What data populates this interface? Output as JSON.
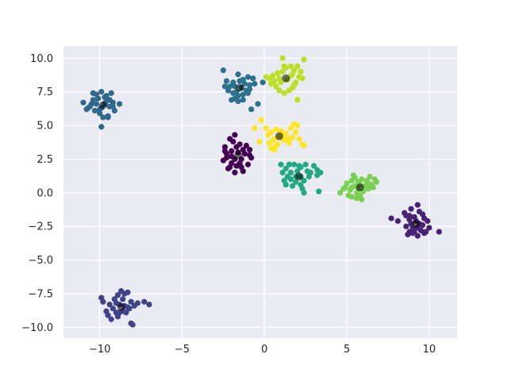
{
  "chart_data": {
    "type": "scatter",
    "title": "",
    "xlabel": "",
    "ylabel": "",
    "xlim": [
      -12.2,
      11.7
    ],
    "ylim": [
      -10.8,
      10.9
    ],
    "xticks": [
      -10,
      -5,
      0,
      5,
      10
    ],
    "xtick_labels": [
      "−10",
      "−5",
      "0",
      "5",
      "10"
    ],
    "yticks": [
      -10,
      -7.5,
      -5,
      -2.5,
      0,
      2.5,
      5,
      7.5,
      10
    ],
    "ytick_labels": [
      "−10.0",
      "−7.5",
      "−5.0",
      "−2.5",
      "0.0",
      "2.5",
      "5.0",
      "7.5",
      "10.0"
    ],
    "grid": true,
    "background": "#eaeaf2",
    "center_color": "#000000",
    "clusters": [
      {
        "color": "#440154",
        "center": [
          -1.6,
          2.8
        ],
        "points": [
          [
            -2.4,
            3.4
          ],
          [
            -2.1,
            4.0
          ],
          [
            -1.8,
            4.3
          ],
          [
            -1.5,
            3.6
          ],
          [
            -1.1,
            3.5
          ],
          [
            -0.9,
            3.2
          ],
          [
            -0.8,
            2.6
          ],
          [
            -1.0,
            2.1
          ],
          [
            -1.3,
            1.6
          ],
          [
            -1.8,
            1.5
          ],
          [
            -2.2,
            1.8
          ],
          [
            -2.5,
            2.4
          ],
          [
            -2.3,
            2.9
          ],
          [
            -2.0,
            3.1
          ],
          [
            -1.6,
            3.0
          ],
          [
            -1.4,
            2.5
          ],
          [
            -2.0,
            2.2
          ],
          [
            -1.2,
            2.9
          ],
          [
            -1.7,
            2.0
          ],
          [
            -2.3,
            2.6
          ],
          [
            -2.1,
            1.9
          ],
          [
            -1.9,
            3.8
          ],
          [
            -1.5,
            2.2
          ],
          [
            -0.9,
            2.8
          ],
          [
            -2.4,
            3.1
          ],
          [
            -1.7,
            3.4
          ],
          [
            -1.3,
            3.2
          ],
          [
            -1.8,
            2.5
          ],
          [
            -1.4,
            1.9
          ],
          [
            -2.0,
            2.7
          ]
        ]
      },
      {
        "color": "#482374",
        "center": [
          9.2,
          -2.3
        ],
        "points": [
          [
            8.5,
            -1.5
          ],
          [
            8.9,
            -1.2
          ],
          [
            9.3,
            -0.9
          ],
          [
            9.6,
            -1.6
          ],
          [
            9.9,
            -2.1
          ],
          [
            10.0,
            -2.6
          ],
          [
            9.7,
            -3.0
          ],
          [
            9.3,
            -3.2
          ],
          [
            8.8,
            -2.9
          ],
          [
            8.6,
            -2.5
          ],
          [
            8.8,
            -2.0
          ],
          [
            9.1,
            -1.8
          ],
          [
            9.4,
            -2.3
          ],
          [
            9.0,
            -2.6
          ],
          [
            9.5,
            -2.8
          ],
          [
            8.7,
            -3.1
          ],
          [
            9.2,
            -2.1
          ],
          [
            9.6,
            -2.4
          ],
          [
            8.9,
            -2.3
          ],
          [
            9.4,
            -1.4
          ],
          [
            7.7,
            -1.9
          ],
          [
            8.1,
            -2.1
          ],
          [
            10.6,
            -2.9
          ],
          [
            9.8,
            -2.9
          ],
          [
            8.6,
            -1.7
          ],
          [
            9.1,
            -2.9
          ],
          [
            9.7,
            -1.9
          ],
          [
            8.8,
            -1.7
          ],
          [
            9.3,
            -2.6
          ],
          [
            9.0,
            -3.0
          ]
        ]
      },
      {
        "color": "#404387",
        "center": [
          -8.7,
          -8.5
        ],
        "points": [
          [
            -9.9,
            -7.8
          ],
          [
            -9.8,
            -8.1
          ],
          [
            -9.4,
            -8.3
          ],
          [
            -9.2,
            -8.6
          ],
          [
            -9.5,
            -9.1
          ],
          [
            -9.3,
            -9.4
          ],
          [
            -8.9,
            -9.2
          ],
          [
            -8.6,
            -8.8
          ],
          [
            -8.3,
            -8.5
          ],
          [
            -8.1,
            -8.1
          ],
          [
            -8.5,
            -7.5
          ],
          [
            -8.7,
            -7.3
          ],
          [
            -8.9,
            -7.6
          ],
          [
            -9.1,
            -7.9
          ],
          [
            -8.8,
            -8.3
          ],
          [
            -8.4,
            -8.9
          ],
          [
            -8.0,
            -9.8
          ],
          [
            -8.1,
            -9.7
          ],
          [
            -7.9,
            -8.4
          ],
          [
            -7.3,
            -8.1
          ],
          [
            -7.0,
            -8.3
          ],
          [
            -8.6,
            -7.9
          ],
          [
            -9.0,
            -8.2
          ],
          [
            -8.5,
            -8.4
          ],
          [
            -8.3,
            -7.4
          ],
          [
            -9.6,
            -8.8
          ],
          [
            -8.8,
            -8.9
          ],
          [
            -9.0,
            -8.9
          ],
          [
            -7.7,
            -8.2
          ],
          [
            -8.2,
            -8.6
          ]
        ]
      },
      {
        "color": "#31688e",
        "center": [
          -9.8,
          6.5
        ],
        "points": [
          [
            -11.0,
            6.7
          ],
          [
            -10.7,
            6.3
          ],
          [
            -10.4,
            6.9
          ],
          [
            -10.2,
            7.3
          ],
          [
            -9.9,
            7.5
          ],
          [
            -9.6,
            7.2
          ],
          [
            -9.4,
            6.9
          ],
          [
            -9.2,
            6.4
          ],
          [
            -9.1,
            6.1
          ],
          [
            -9.5,
            5.7
          ],
          [
            -9.8,
            5.6
          ],
          [
            -10.0,
            5.9
          ],
          [
            -10.3,
            6.1
          ],
          [
            -10.6,
            6.4
          ],
          [
            -9.7,
            6.6
          ],
          [
            -9.3,
            7.4
          ],
          [
            -8.8,
            6.6
          ],
          [
            -9.4,
            6.4
          ],
          [
            -9.9,
            4.9
          ],
          [
            -10.2,
            6.6
          ],
          [
            -10.0,
            6.2
          ],
          [
            -9.6,
            6.8
          ],
          [
            -10.4,
            7.4
          ],
          [
            -9.7,
            7.1
          ],
          [
            -10.8,
            6.2
          ],
          [
            -9.5,
            5.6
          ],
          [
            -10.1,
            7.0
          ],
          [
            -9.2,
            6.7
          ],
          [
            -9.9,
            6.3
          ],
          [
            -10.5,
            6.6
          ]
        ]
      },
      {
        "color": "#2c728e",
        "center": [
          -1.5,
          7.8
        ],
        "points": [
          [
            -2.5,
            9.1
          ],
          [
            -2.3,
            8.3
          ],
          [
            -2.1,
            7.9
          ],
          [
            -1.9,
            7.4
          ],
          [
            -1.8,
            7.0
          ],
          [
            -1.6,
            6.8
          ],
          [
            -1.3,
            7.3
          ],
          [
            -1.1,
            7.6
          ],
          [
            -0.9,
            8.0
          ],
          [
            -0.6,
            8.1
          ],
          [
            -0.7,
            8.5
          ],
          [
            -1.0,
            8.6
          ],
          [
            -1.3,
            8.4
          ],
          [
            -1.6,
            8.8
          ],
          [
            -1.9,
            8.2
          ],
          [
            -2.2,
            7.6
          ],
          [
            -1.4,
            7.8
          ],
          [
            -1.7,
            7.5
          ],
          [
            -0.8,
            6.2
          ],
          [
            -0.4,
            6.6
          ],
          [
            -0.1,
            8.2
          ],
          [
            -2.0,
            6.9
          ],
          [
            -1.2,
            8.1
          ],
          [
            -1.5,
            8.3
          ],
          [
            -1.8,
            7.9
          ],
          [
            -1.0,
            7.4
          ],
          [
            -2.4,
            7.9
          ],
          [
            -1.3,
            6.9
          ],
          [
            -1.6,
            7.2
          ],
          [
            -0.9,
            7.7
          ]
        ]
      },
      {
        "color": "#22a884",
        "center": [
          2.1,
          1.2
        ],
        "points": [
          [
            1.0,
            2.1
          ],
          [
            1.3,
            1.8
          ],
          [
            1.6,
            1.5
          ],
          [
            1.9,
            1.2
          ],
          [
            2.2,
            1.9
          ],
          [
            2.5,
            2.1
          ],
          [
            2.6,
            1.6
          ],
          [
            2.4,
            0.9
          ],
          [
            2.2,
            0.6
          ],
          [
            2.3,
            0.3
          ],
          [
            2.4,
            0.0
          ],
          [
            1.7,
            0.5
          ],
          [
            1.3,
            0.6
          ],
          [
            1.2,
            0.9
          ],
          [
            1.4,
            1.2
          ],
          [
            1.5,
            2.1
          ],
          [
            1.8,
            2.1
          ],
          [
            2.0,
            1.6
          ],
          [
            2.7,
            1.2
          ],
          [
            3.0,
            2.0
          ],
          [
            3.2,
            1.7
          ],
          [
            3.4,
            1.5
          ],
          [
            3.2,
            1.3
          ],
          [
            3.3,
            0.1
          ],
          [
            1.1,
            1.5
          ],
          [
            1.9,
            0.8
          ],
          [
            2.1,
            2.0
          ],
          [
            2.8,
            1.5
          ],
          [
            1.6,
            1.0
          ],
          [
            2.2,
            1.2
          ]
        ]
      },
      {
        "color": "#7ad151",
        "center": [
          5.8,
          0.4
        ],
        "points": [
          [
            4.6,
            0.0
          ],
          [
            4.9,
            0.4
          ],
          [
            5.0,
            0.7
          ],
          [
            5.3,
            0.9
          ],
          [
            5.5,
            1.1
          ],
          [
            5.7,
            0.8
          ],
          [
            5.9,
            1.0
          ],
          [
            6.2,
            0.9
          ],
          [
            6.4,
            1.2
          ],
          [
            6.7,
            1.0
          ],
          [
            6.5,
            0.6
          ],
          [
            6.3,
            0.3
          ],
          [
            6.0,
            0.1
          ],
          [
            5.8,
            -0.2
          ],
          [
            5.6,
            -0.4
          ],
          [
            5.3,
            -0.3
          ],
          [
            5.1,
            -0.2
          ],
          [
            5.2,
            0.2
          ],
          [
            5.5,
            0.5
          ],
          [
            5.8,
            0.6
          ],
          [
            6.1,
            0.5
          ],
          [
            5.4,
            1.3
          ],
          [
            6.8,
            0.8
          ],
          [
            4.8,
            0.3
          ],
          [
            6.6,
            0.4
          ],
          [
            5.6,
            0.0
          ],
          [
            5.9,
            -0.5
          ],
          [
            5.3,
            0.4
          ],
          [
            6.3,
            0.7
          ],
          [
            5.7,
            0.3
          ]
        ]
      },
      {
        "color": "#bddf26",
        "center": [
          1.3,
          8.5
        ],
        "points": [
          [
            0.1,
            8.6
          ],
          [
            0.4,
            8.1
          ],
          [
            0.7,
            7.9
          ],
          [
            0.9,
            8.5
          ],
          [
            1.1,
            9.0
          ],
          [
            1.3,
            9.3
          ],
          [
            1.1,
            10.0
          ],
          [
            1.6,
            9.4
          ],
          [
            1.8,
            9.1
          ],
          [
            2.0,
            9.4
          ],
          [
            2.2,
            9.0
          ],
          [
            2.1,
            8.6
          ],
          [
            1.9,
            8.2
          ],
          [
            1.7,
            7.8
          ],
          [
            1.5,
            7.6
          ],
          [
            1.2,
            7.4
          ],
          [
            0.9,
            7.6
          ],
          [
            0.6,
            8.3
          ],
          [
            0.8,
            8.9
          ],
          [
            1.4,
            8.4
          ],
          [
            2.3,
            8.5
          ],
          [
            1.6,
            8.7
          ],
          [
            1.0,
            8.2
          ],
          [
            0.3,
            8.5
          ],
          [
            2.4,
            9.9
          ],
          [
            2.0,
            6.9
          ],
          [
            1.8,
            8.0
          ],
          [
            1.2,
            9.4
          ],
          [
            0.5,
            8.7
          ],
          [
            1.7,
            8.8
          ]
        ]
      },
      {
        "color": "#fde725",
        "center": [
          0.9,
          4.2
        ],
        "points": [
          [
            -0.6,
            4.8
          ],
          [
            -0.2,
            5.4
          ],
          [
            0.1,
            4.8
          ],
          [
            0.4,
            4.5
          ],
          [
            0.7,
            4.7
          ],
          [
            1.0,
            4.6
          ],
          [
            1.3,
            4.4
          ],
          [
            1.6,
            4.8
          ],
          [
            1.8,
            5.1
          ],
          [
            2.0,
            5.0
          ],
          [
            1.9,
            4.5
          ],
          [
            1.7,
            4.1
          ],
          [
            2.1,
            4.0
          ],
          [
            2.3,
            3.6
          ],
          [
            2.4,
            3.5
          ],
          [
            1.5,
            3.7
          ],
          [
            1.2,
            3.9
          ],
          [
            0.9,
            4.2
          ],
          [
            0.6,
            4.0
          ],
          [
            0.3,
            3.7
          ],
          [
            0.4,
            3.3
          ],
          [
            0.6,
            3.2
          ],
          [
            0.8,
            3.6
          ],
          [
            0.2,
            4.3
          ],
          [
            -0.3,
            3.8
          ],
          [
            1.1,
            4.3
          ],
          [
            0.5,
            3.9
          ],
          [
            1.4,
            4.0
          ],
          [
            0.7,
            3.5
          ],
          [
            1.1,
            4.0
          ]
        ]
      }
    ]
  }
}
